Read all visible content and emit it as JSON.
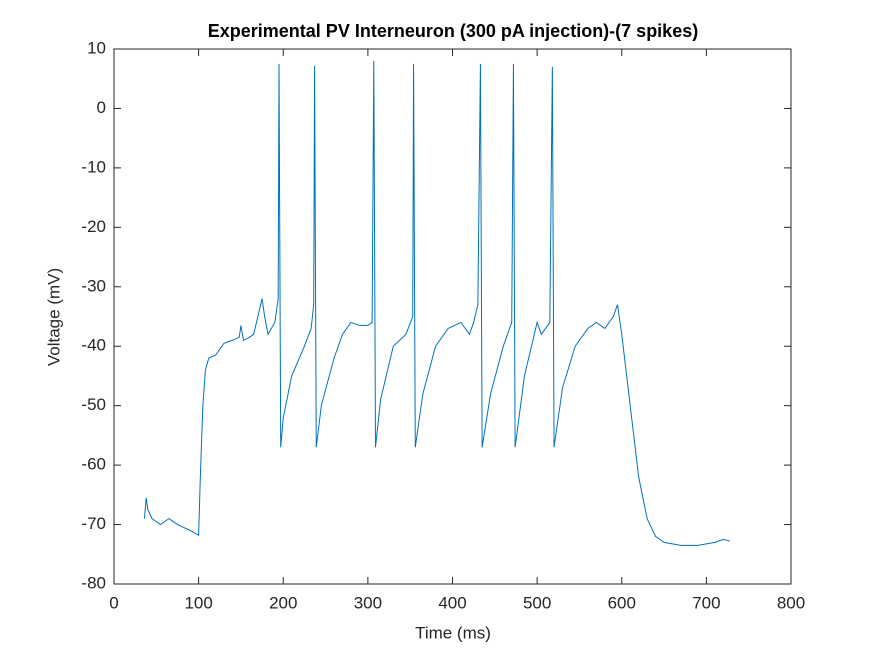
{
  "chart_data": {
    "type": "line",
    "title": "Experimental PV Interneuron (300 pA injection)-(7 spikes)",
    "x_label": "Time (ms)",
    "y_label": "Voltage (mV)",
    "color": "#0072bd",
    "x": [
      36,
      38,
      40,
      45,
      55,
      65,
      75,
      90,
      100,
      102,
      105,
      108,
      112,
      120,
      130,
      140,
      148,
      150,
      153,
      160,
      165,
      170,
      175,
      178,
      182,
      190,
      194,
      195,
      197,
      200,
      210,
      225,
      233,
      236,
      237,
      239,
      245,
      260,
      270,
      280,
      290,
      300,
      305,
      307,
      309,
      315,
      330,
      345,
      353,
      354,
      356,
      365,
      380,
      395,
      410,
      420,
      425,
      430,
      433,
      435,
      445,
      460,
      470,
      472,
      474,
      485,
      495,
      500,
      505,
      515,
      518,
      520,
      530,
      545,
      560,
      570,
      580,
      590,
      595,
      600,
      610,
      620,
      630,
      640,
      650,
      670,
      690,
      710,
      720,
      728
    ],
    "values": [
      -69,
      -65.5,
      -67.5,
      -69,
      -70,
      -69,
      -70,
      -71,
      -71.8,
      -62,
      -50,
      -44,
      -42,
      -41.5,
      -39.5,
      -39,
      -38.5,
      -36.5,
      -39,
      -38.5,
      -38,
      -35,
      -32,
      -35,
      -38,
      -36,
      -32,
      7.5,
      -57,
      -52,
      -45,
      -40,
      -37,
      -33,
      7.2,
      -57,
      -50,
      -42,
      -38,
      -36,
      -36.5,
      -36.5,
      -36,
      8,
      -57,
      -49,
      -40,
      -38,
      -35,
      7.5,
      -57,
      -48,
      -40,
      -37,
      -36,
      -38,
      -36,
      -33,
      7.5,
      -57,
      -48,
      -40,
      -36,
      7.5,
      -57,
      -45,
      -39,
      -36,
      -38,
      -36,
      7,
      -57,
      -47,
      -40,
      -37,
      -36,
      -37,
      -35,
      -33,
      -38,
      -50,
      -62,
      -69,
      -72,
      -73,
      -73.5,
      -73.5,
      -73,
      -72.5,
      -72.8
    ],
    "xlim": [
      0,
      800
    ],
    "ylim": [
      -80,
      10
    ],
    "xticks": [
      0,
      100,
      200,
      300,
      400,
      500,
      600,
      700,
      800
    ],
    "yticks": [
      -80,
      -70,
      -60,
      -50,
      -40,
      -30,
      -20,
      -10,
      0,
      10
    ]
  }
}
